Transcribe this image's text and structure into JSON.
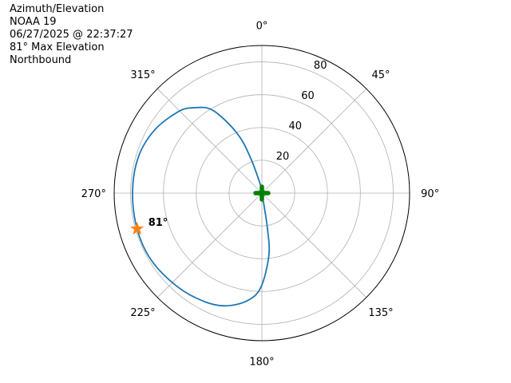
{
  "title_lines": [
    "Azimuth/Elevation",
    "NOAA 19",
    "06/27/2025 @ 22:37:27",
    "81° Max Elevation",
    "Northbound"
  ],
  "chart_data": {
    "type": "polar-line",
    "theta_direction": "clockwise",
    "theta_zero": "north",
    "rlim": [
      0,
      90
    ],
    "rticks": [
      20,
      40,
      60,
      80
    ],
    "rtick_labels": [
      "20",
      "40",
      "60",
      "80"
    ],
    "theta_ticks": [
      0,
      45,
      90,
      135,
      180,
      225,
      270,
      315
    ],
    "theta_tick_labels": [
      "0°",
      "45°",
      "90°",
      "135°",
      "180°",
      "225°",
      "270°",
      "315°"
    ],
    "grid": true,
    "track": {
      "color": "#1f77b4",
      "azimuth": [
        0,
        351.5,
        342,
        337.4,
        329.4,
        321.6,
        314.3,
        300.3,
        286.3,
        270.7,
        254,
        238.5,
        221.6,
        207.6,
        197.6,
        187.6,
        180.6,
        173.6,
        171.1,
        170,
        0
      ],
      "r": [
        0,
        4.3,
        23.2,
        39.7,
        58.6,
        66.4,
        71.1,
        75.9,
        78.4,
        78.8,
        79.1,
        78.8,
        76.8,
        74.8,
        72.1,
        66.1,
        57.4,
        38.2,
        22,
        5.6,
        0
      ]
    },
    "max_marker": {
      "azimuth": 254,
      "r": 79.1,
      "color": "#ff7f0e",
      "marker": "star",
      "label": "81°"
    },
    "center_marker": {
      "azimuth": 0,
      "r": 0,
      "color": "#008000",
      "marker": "plus"
    }
  }
}
